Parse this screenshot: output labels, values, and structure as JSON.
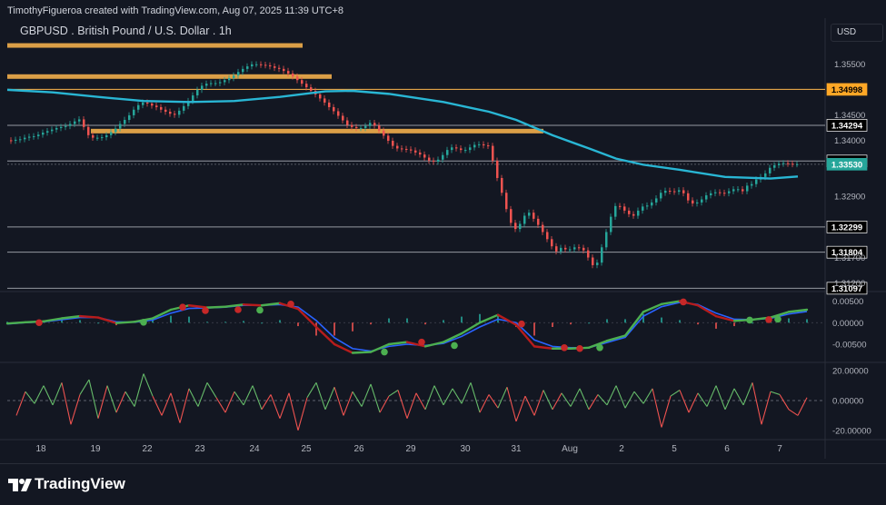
{
  "header": {
    "attribution": "TimothyFigueroa created with TradingView.com, Aug 07, 2025 11:39 UTC+8",
    "currency": "USD"
  },
  "footer": {
    "brand": "TradingView",
    "logo_icon": "tradingview-logo-icon"
  },
  "chart_data": {
    "type": "line",
    "symbol_title": "GBPUSD . British Pound / U.S. Dollar . 1h",
    "x_tick_labels": [
      "18",
      "19",
      "22",
      "23",
      "24",
      "25",
      "26",
      "29",
      "30",
      "31",
      "Aug",
      "2",
      "5",
      "6",
      "7"
    ],
    "main_pane": {
      "ylim": [
        1.3105,
        1.3595
      ],
      "y_tick_labels": [
        "1.35500",
        "1.34500",
        "1.34000",
        "1.32900",
        "1.31700",
        "1.31200"
      ],
      "price_series": {
        "x": [
          0,
          5,
          10,
          15,
          20,
          25,
          30,
          35,
          40,
          45,
          50,
          55,
          60,
          65,
          70,
          75,
          80,
          85,
          90,
          95,
          100,
          105,
          110,
          115,
          120,
          125,
          130,
          135,
          140,
          145,
          150,
          155,
          160,
          165,
          170,
          175,
          180,
          185,
          190,
          195,
          200,
          205,
          210,
          215,
          220,
          225,
          230,
          235,
          240,
          245,
          250,
          255,
          260,
          265,
          270,
          275,
          280,
          285,
          290,
          295,
          300,
          305,
          310,
          315,
          320,
          325,
          330,
          335,
          340,
          345,
          350,
          355,
          360,
          365,
          370,
          375,
          380,
          385,
          390,
          395,
          400,
          405,
          410,
          415,
          420,
          425,
          430,
          435,
          440,
          445,
          450,
          455,
          460,
          465,
          470,
          475,
          480,
          485,
          490,
          495,
          500,
          505,
          510,
          515,
          520,
          525,
          530,
          535,
          540,
          545,
          550,
          555,
          560,
          565,
          570,
          575,
          580,
          585,
          590,
          595,
          600,
          605,
          610,
          615,
          620,
          625,
          630,
          635,
          640,
          645,
          650,
          655,
          660,
          665,
          670,
          675,
          680,
          685,
          690,
          695,
          700,
          705,
          710,
          715,
          720,
          725,
          730,
          735,
          740,
          745,
          750,
          755,
          760,
          765,
          770,
          775,
          780,
          785,
          790,
          795,
          800,
          805,
          810,
          815,
          820,
          825,
          830,
          835,
          840,
          845,
          850,
          855,
          860,
          865,
          870
        ],
        "y": [
          1.34,
          1.3399,
          1.3401,
          1.3402,
          1.3405,
          1.3407,
          1.3408,
          1.3411,
          1.3415,
          1.3418,
          1.3421,
          1.3424,
          1.3426,
          1.3428,
          1.3432,
          1.3437,
          1.3441,
          1.3426,
          1.341,
          1.3405,
          1.3405,
          1.3406,
          1.341,
          1.3416,
          1.3423,
          1.3432,
          1.344,
          1.3449,
          1.346,
          1.3469,
          1.3474,
          1.3472,
          1.3468,
          1.3465,
          1.346,
          1.3456,
          1.3452,
          1.345,
          1.3458,
          1.3467,
          1.3477,
          1.3488,
          1.3499,
          1.3507,
          1.3511,
          1.3512,
          1.3512,
          1.3514,
          1.3518,
          1.3522,
          1.3527,
          1.3534,
          1.354,
          1.3545,
          1.3549,
          1.3549,
          1.3548,
          1.3547,
          1.3545,
          1.3542,
          1.354,
          1.3536,
          1.3531,
          1.3525,
          1.3518,
          1.3511,
          1.3504,
          1.3497,
          1.349,
          1.3482,
          1.3474,
          1.3465,
          1.3457,
          1.3448,
          1.3439,
          1.343,
          1.3426,
          1.3424,
          1.3424,
          1.3428,
          1.3434,
          1.3429,
          1.3419,
          1.3409,
          1.3399,
          1.3389,
          1.3384,
          1.3383,
          1.3382,
          1.338,
          1.3376,
          1.3372,
          1.3366,
          1.336,
          1.3358,
          1.3362,
          1.3371,
          1.3381,
          1.3386,
          1.3384,
          1.3381,
          1.3381,
          1.3386,
          1.3391,
          1.3392,
          1.339,
          1.3389,
          1.336,
          1.3326,
          1.3297,
          1.3265,
          1.3238,
          1.3226,
          1.3236,
          1.3252,
          1.3258,
          1.3246,
          1.3234,
          1.322,
          1.3206,
          1.3192,
          1.3182,
          1.3189,
          1.3186,
          1.3186,
          1.319,
          1.3189,
          1.3184,
          1.317,
          1.3155,
          1.316,
          1.319,
          1.322,
          1.325,
          1.3271,
          1.327,
          1.3262,
          1.3255,
          1.3252,
          1.3262,
          1.327,
          1.3272,
          1.3278,
          1.3286,
          1.3297,
          1.3301,
          1.33,
          1.3299,
          1.3302,
          1.3296,
          1.3282,
          1.3276,
          1.3278,
          1.3284,
          1.3292,
          1.3296,
          1.3298,
          1.3297,
          1.3296,
          1.33,
          1.3304,
          1.3304,
          1.33,
          1.3311,
          1.3314,
          1.3323,
          1.3328,
          1.3335,
          1.3346,
          1.3351,
          1.3354,
          1.3355,
          1.3354,
          1.3353,
          1.3353
        ]
      },
      "moving_average": {
        "x": [
          0,
          50,
          100,
          150,
          200,
          250,
          300,
          350,
          380,
          420,
          480,
          530,
          560,
          600,
          640,
          670,
          700,
          740,
          790,
          840,
          870
        ],
        "y": [
          1.3499,
          1.3494,
          1.3485,
          1.3477,
          1.3475,
          1.3477,
          1.3485,
          1.3496,
          1.3497,
          1.3491,
          1.3475,
          1.3456,
          1.344,
          1.341,
          1.3384,
          1.3364,
          1.3352,
          1.3342,
          1.3328,
          1.3325,
          1.3329
        ]
      },
      "horizontal_levels": [
        {
          "label": "1.34998",
          "style": "orange-label"
        },
        {
          "label": "1.34294",
          "style": "black-label"
        },
        {
          "label": "1.33593",
          "style": "black-label"
        },
        {
          "label": "1.33530",
          "style": "cyan-label"
        },
        {
          "label": "1.32299",
          "style": "black-label"
        },
        {
          "label": "1.31804",
          "style": "black-label"
        },
        {
          "label": "1.31097",
          "style": "black-label"
        }
      ],
      "zones": [
        {
          "price": 1.3586
        },
        {
          "price": 1.3525
        },
        {
          "price": 1.3418
        }
      ],
      "colors": {
        "price": "#b0b3b8",
        "bullish": "#26a69a",
        "bearish": "#ef5350",
        "moving_average": "#29b6d4",
        "zone": "#ffb74d",
        "level": "#787b86"
      }
    },
    "macd_pane": {
      "ylim": [
        -0.009,
        0.007
      ],
      "y_tick_labels": [
        "0.00500",
        "0.00000",
        "-0.00500"
      ],
      "x": [
        0,
        20,
        40,
        60,
        80,
        100,
        120,
        140,
        160,
        180,
        200,
        220,
        240,
        260,
        280,
        300,
        320,
        340,
        360,
        380,
        400,
        420,
        440,
        460,
        480,
        500,
        520,
        540,
        560,
        580,
        600,
        620,
        640,
        660,
        680,
        700,
        720,
        740,
        760,
        780,
        800,
        820,
        840,
        860,
        880
      ],
      "macd": [
        -0.0002,
        0.0001,
        0.0003,
        0.001,
        0.0015,
        0.0012,
        -0.0001,
        0.0002,
        0.001,
        0.003,
        0.004,
        0.0035,
        0.0037,
        0.0042,
        0.004,
        0.0045,
        0.0032,
        -0.001,
        -0.005,
        -0.007,
        -0.0068,
        -0.005,
        -0.0045,
        -0.0055,
        -0.0045,
        -0.0025,
        0.0,
        0.0018,
        -0.0005,
        -0.0055,
        -0.006,
        -0.006,
        -0.0058,
        -0.0042,
        -0.003,
        0.0025,
        0.0043,
        0.005,
        0.004,
        0.0015,
        0.0004,
        0.0007,
        0.0012,
        0.0025,
        0.003
      ],
      "signal": [
        -0.0003,
        0.0,
        0.0002,
        0.0007,
        0.0012,
        0.0012,
        0.0002,
        0.0001,
        0.0006,
        0.0022,
        0.0033,
        0.0034,
        0.0036,
        0.004,
        0.004,
        0.0042,
        0.0036,
        0.0005,
        -0.0035,
        -0.006,
        -0.0066,
        -0.0055,
        -0.005,
        -0.0053,
        -0.0048,
        -0.0032,
        -0.001,
        0.0008,
        0.0,
        -0.004,
        -0.0055,
        -0.0058,
        -0.0058,
        -0.0046,
        -0.0034,
        0.0015,
        0.0037,
        0.0047,
        0.0042,
        0.0022,
        0.0008,
        0.0007,
        0.001,
        0.002,
        0.0026
      ],
      "crossover_dots": [
        {
          "x": 35,
          "value": 0.0,
          "type": "bearish"
        },
        {
          "x": 150,
          "value": 0.0001,
          "type": "bullish"
        },
        {
          "x": 193,
          "value": 0.0036,
          "type": "bearish"
        },
        {
          "x": 218,
          "value": 0.0028,
          "type": "bearish"
        },
        {
          "x": 254,
          "value": 0.003,
          "type": "bearish"
        },
        {
          "x": 278,
          "value": 0.0029,
          "type": "bullish"
        },
        {
          "x": 312,
          "value": 0.0043,
          "type": "bearish"
        },
        {
          "x": 415,
          "value": -0.0068,
          "type": "bullish"
        },
        {
          "x": 456,
          "value": -0.0045,
          "type": "bearish"
        },
        {
          "x": 492,
          "value": -0.0053,
          "type": "bullish"
        },
        {
          "x": 566,
          "value": -0.0003,
          "type": "bearish"
        },
        {
          "x": 613,
          "value": -0.0058,
          "type": "bearish"
        },
        {
          "x": 630,
          "value": -0.006,
          "type": "bearish"
        },
        {
          "x": 652,
          "value": -0.0058,
          "type": "bullish"
        },
        {
          "x": 744,
          "value": 0.0048,
          "type": "bearish"
        },
        {
          "x": 817,
          "value": 0.0006,
          "type": "bullish"
        },
        {
          "x": 838,
          "value": 0.0007,
          "type": "bearish"
        },
        {
          "x": 848,
          "value": 0.0008,
          "type": "bullish"
        }
      ],
      "colors": {
        "macd_up": "#4caf50",
        "macd_down": "#b71c1c",
        "signal": "#2962ff",
        "hist_up": "#26a69a",
        "hist_down": "#ef5350"
      }
    },
    "oscillator_pane": {
      "ylim": [
        -25,
        25
      ],
      "y_tick_labels": [
        "20.00000",
        "0.00000",
        "-20.00000"
      ],
      "x": [
        10,
        20,
        30,
        40,
        50,
        60,
        70,
        80,
        90,
        100,
        110,
        120,
        130,
        140,
        150,
        160,
        170,
        180,
        190,
        200,
        210,
        220,
        230,
        240,
        250,
        260,
        270,
        280,
        290,
        300,
        310,
        320,
        330,
        340,
        350,
        360,
        370,
        380,
        390,
        400,
        410,
        420,
        430,
        440,
        450,
        460,
        470,
        480,
        490,
        500,
        510,
        520,
        530,
        540,
        550,
        560,
        570,
        580,
        590,
        600,
        610,
        620,
        630,
        640,
        650,
        660,
        670,
        680,
        690,
        700,
        710,
        720,
        730,
        740,
        750,
        760,
        770,
        780,
        790,
        800,
        810,
        820,
        830,
        840,
        850,
        860,
        870,
        880
      ],
      "values": [
        -10,
        6,
        -2,
        10,
        -3,
        12,
        -16,
        4,
        14,
        -12,
        10,
        -8,
        6,
        -4,
        18,
        3,
        -10,
        5,
        -15,
        8,
        -4,
        12,
        2,
        -8,
        6,
        -3,
        10,
        -6,
        4,
        -12,
        5,
        -20,
        2,
        12,
        -6,
        9,
        -10,
        6,
        -4,
        11,
        -8,
        3,
        7,
        -12,
        5,
        -6,
        10,
        -3,
        8,
        -2,
        12,
        -8,
        4,
        -5,
        9,
        -14,
        3,
        -10,
        7,
        -6,
        5,
        -4,
        8,
        -6,
        4,
        -3,
        10,
        -5,
        6,
        -2,
        8,
        -18,
        3,
        7,
        -8,
        5,
        -4,
        10,
        -6,
        8,
        -3,
        12,
        -16,
        6,
        4,
        -6,
        -10,
        2
      ],
      "colors": {
        "positive": "#66bb6a",
        "negative": "#ef5350",
        "zero_line": "#787b86"
      }
    }
  }
}
